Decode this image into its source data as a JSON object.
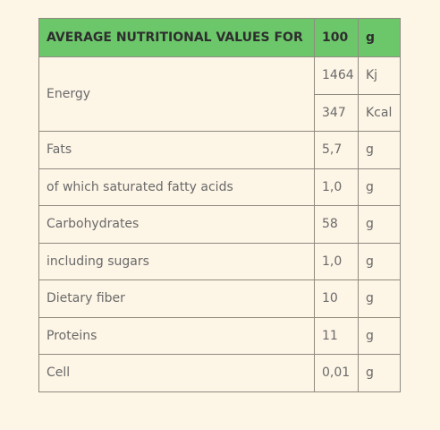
{
  "table": {
    "header": [
      "AVERAGE NUTRITIONAL VALUES FOR",
      "100",
      "g"
    ],
    "rows": [
      {
        "label": "Energy",
        "entries": [
          [
            "1464",
            "Kj"
          ],
          [
            "347",
            "Kcal"
          ]
        ]
      },
      {
        "label": "Fats",
        "entries": [
          [
            "5,7",
            "g"
          ]
        ]
      },
      {
        "label": "of which saturated fatty acids",
        "entries": [
          [
            "1,0",
            "g"
          ]
        ]
      },
      {
        "label": "Carbohydrates",
        "entries": [
          [
            "58",
            "g"
          ]
        ]
      },
      {
        "label": "including sugars",
        "entries": [
          [
            "1,0",
            "g"
          ]
        ]
      },
      {
        "label": "Dietary fiber",
        "entries": [
          [
            "10",
            "g"
          ]
        ]
      },
      {
        "label": "Proteins",
        "entries": [
          [
            "11",
            "g"
          ]
        ]
      },
      {
        "label": "Cell",
        "entries": [
          [
            "0,01",
            "g"
          ]
        ]
      }
    ]
  }
}
